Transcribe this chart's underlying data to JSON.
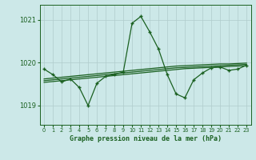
{
  "title": "Graphe pression niveau de la mer (hPa)",
  "background_color": "#cce8e8",
  "grid_color": "#b0cccc",
  "line_color": "#1a6020",
  "x_ticks": [
    0,
    1,
    2,
    3,
    4,
    5,
    6,
    7,
    8,
    9,
    10,
    11,
    12,
    13,
    14,
    15,
    16,
    17,
    18,
    19,
    20,
    21,
    22,
    23
  ],
  "y_ticks": [
    1019,
    1020,
    1021
  ],
  "ylim": [
    1018.55,
    1021.35
  ],
  "xlim": [
    -0.5,
    23.5
  ],
  "main_series": [
    1019.85,
    1019.72,
    1019.55,
    1019.62,
    1019.42,
    1019.0,
    1019.52,
    1019.68,
    1019.73,
    1019.78,
    1020.92,
    1021.08,
    1020.72,
    1020.32,
    1019.72,
    1019.27,
    1019.18,
    1019.6,
    1019.76,
    1019.88,
    1019.9,
    1019.82,
    1019.85,
    1019.94
  ],
  "trend_series_1": [
    1019.58,
    1019.6,
    1019.62,
    1019.64,
    1019.66,
    1019.68,
    1019.7,
    1019.72,
    1019.74,
    1019.76,
    1019.78,
    1019.8,
    1019.82,
    1019.84,
    1019.86,
    1019.88,
    1019.89,
    1019.9,
    1019.91,
    1019.92,
    1019.93,
    1019.94,
    1019.95,
    1019.96
  ],
  "trend_series_2": [
    1019.62,
    1019.64,
    1019.66,
    1019.68,
    1019.7,
    1019.72,
    1019.74,
    1019.76,
    1019.78,
    1019.8,
    1019.82,
    1019.84,
    1019.86,
    1019.88,
    1019.9,
    1019.92,
    1019.93,
    1019.94,
    1019.95,
    1019.96,
    1019.97,
    1019.97,
    1019.98,
    1019.99
  ],
  "trend_series_3": [
    1019.54,
    1019.56,
    1019.58,
    1019.6,
    1019.62,
    1019.64,
    1019.66,
    1019.68,
    1019.7,
    1019.72,
    1019.74,
    1019.76,
    1019.78,
    1019.8,
    1019.82,
    1019.84,
    1019.86,
    1019.87,
    1019.88,
    1019.89,
    1019.9,
    1019.91,
    1019.92,
    1019.93
  ]
}
